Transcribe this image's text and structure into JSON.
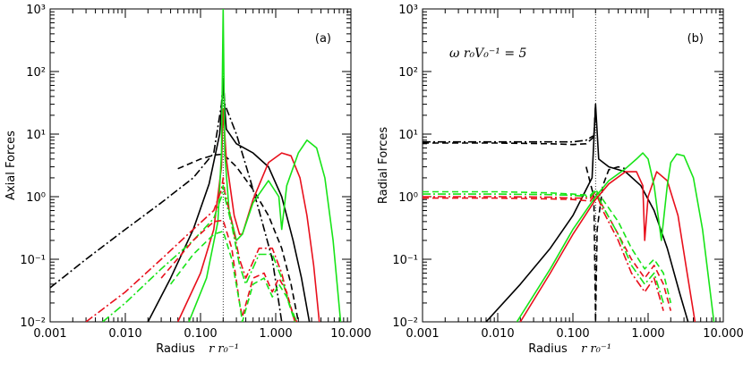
{
  "chart_data": [
    {
      "type": "line",
      "panel": "(a)",
      "ylabel": "Axial Forces",
      "xlabel": "Radius",
      "xlabel_math": "r r₀⁻¹",
      "xscale": "log",
      "yscale": "log",
      "xlim": [
        0.001,
        10
      ],
      "ylim": [
        0.01,
        1000
      ],
      "xticks": [
        "0.001",
        "0.010",
        "0.100",
        "1.000",
        "10.000"
      ],
      "yticks": [
        "10⁻²",
        "10⁻¹",
        "10⁰",
        "10¹",
        "10²",
        "10³"
      ],
      "vline_x": 0.2,
      "colors": {
        "black": "#000000",
        "red": "#e8101c",
        "green": "#18e418"
      },
      "series": [
        {
          "color": "black",
          "style": "solid",
          "x": [
            0.02,
            0.04,
            0.08,
            0.13,
            0.18,
            0.2,
            0.22,
            0.3,
            0.5,
            0.8,
            1.2,
            1.7,
            2.2,
            2.8
          ],
          "y": [
            0.01,
            0.05,
            0.3,
            1.6,
            10,
            60,
            12,
            7,
            5,
            3,
            1,
            0.2,
            0.05,
            0.01
          ]
        },
        {
          "color": "black",
          "style": "dashdot",
          "x": [
            0.001,
            0.003,
            0.01,
            0.03,
            0.08,
            0.15,
            0.19,
            0.2,
            0.21,
            0.3,
            0.45,
            0.6,
            0.9,
            1.2
          ],
          "y": [
            0.035,
            0.1,
            0.3,
            0.8,
            2,
            5,
            30,
            80,
            30,
            10,
            2,
            0.6,
            0.1,
            0.01
          ]
        },
        {
          "color": "black",
          "style": "dash",
          "x": [
            0.05,
            0.1,
            0.15,
            0.2,
            0.3,
            0.5,
            0.8,
            1.2,
            1.6,
            2.0
          ],
          "y": [
            2.8,
            4,
            4.6,
            4.8,
            3,
            1.3,
            0.5,
            0.15,
            0.04,
            0.01
          ]
        },
        {
          "color": "red",
          "style": "solid",
          "x": [
            0.05,
            0.1,
            0.15,
            0.19,
            0.2,
            0.22,
            0.28,
            0.33,
            0.36,
            0.5,
            0.8,
            1.2,
            1.6,
            2.1,
            2.6,
            3.2,
            3.8
          ],
          "y": [
            0.01,
            0.06,
            0.3,
            3,
            25,
            4,
            0.5,
            0.25,
            0.25,
            0.9,
            3.5,
            5,
            4.5,
            2,
            0.5,
            0.08,
            0.01
          ]
        },
        {
          "color": "green",
          "style": "solid",
          "x": [
            0.07,
            0.12,
            0.17,
            0.19,
            0.2,
            0.21,
            0.24,
            0.3,
            0.36,
            0.5,
            0.8,
            1.1,
            1.2,
            1.4,
            2,
            2.6,
            3.5,
            4.5,
            5.8,
            7.3
          ],
          "y": [
            0.01,
            0.05,
            0.4,
            5,
            1000,
            5,
            0.6,
            0.2,
            0.25,
            0.8,
            1.8,
            1,
            0.3,
            1.5,
            5,
            8,
            6,
            2,
            0.2,
            0.01
          ]
        },
        {
          "color": "red",
          "style": "dashdot",
          "x": [
            0.003,
            0.01,
            0.03,
            0.08,
            0.15,
            0.19,
            0.2,
            0.21,
            0.26,
            0.33,
            0.4,
            0.6,
            0.9,
            1.2,
            1.5,
            1.9
          ],
          "y": [
            0.01,
            0.03,
            0.1,
            0.3,
            0.6,
            1.3,
            2,
            1.2,
            0.4,
            0.1,
            0.05,
            0.15,
            0.15,
            0.06,
            0.02,
            0.01
          ]
        },
        {
          "color": "green",
          "style": "dashdot",
          "x": [
            0.005,
            0.01,
            0.03,
            0.08,
            0.15,
            0.19,
            0.2,
            0.21,
            0.26,
            0.33,
            0.4,
            0.6,
            0.9,
            1.2,
            1.5,
            1.9
          ],
          "y": [
            0.01,
            0.02,
            0.07,
            0.2,
            0.45,
            1,
            1.5,
            1,
            0.35,
            0.08,
            0.04,
            0.12,
            0.12,
            0.05,
            0.02,
            0.01
          ]
        },
        {
          "color": "red",
          "style": "dash",
          "x": [
            0.03,
            0.08,
            0.15,
            0.2,
            0.26,
            0.33,
            0.36,
            0.5,
            0.7,
            0.9,
            1.1,
            1.4,
            1.8
          ],
          "y": [
            0.05,
            0.2,
            0.4,
            0.42,
            0.15,
            0.02,
            0.012,
            0.05,
            0.06,
            0.03,
            0.05,
            0.03,
            0.01
          ]
        },
        {
          "color": "green",
          "style": "dash",
          "x": [
            0.04,
            0.08,
            0.15,
            0.2,
            0.26,
            0.33,
            0.36,
            0.5,
            0.7,
            0.9,
            1.1,
            1.4,
            1.8
          ],
          "y": [
            0.04,
            0.12,
            0.25,
            0.28,
            0.1,
            0.02,
            0.01,
            0.04,
            0.05,
            0.025,
            0.04,
            0.025,
            0.01
          ]
        }
      ]
    },
    {
      "type": "line",
      "panel": "(b)",
      "ylabel": "Radial Forces",
      "xlabel": "Radius",
      "xlabel_math": "r r₀⁻¹",
      "annotation": "ω r₀V₀⁻¹ = 5",
      "xscale": "log",
      "yscale": "log",
      "xlim": [
        0.001,
        10
      ],
      "ylim": [
        0.01,
        1000
      ],
      "xticks": [
        "0.001",
        "0.010",
        "0.100",
        "1.000",
        "10.000"
      ],
      "yticks": [
        "10⁻²",
        "10⁻¹",
        "10⁰",
        "10¹",
        "10²",
        "10³"
      ],
      "vline_x": 0.2,
      "colors": {
        "black": "#000000",
        "red": "#e8101c",
        "green": "#18e418"
      },
      "series": [
        {
          "color": "black",
          "style": "dash",
          "x": [
            0.001,
            0.01,
            0.05,
            0.1,
            0.15,
            0.19,
            0.2
          ],
          "y": [
            7.2,
            7.2,
            7,
            6.8,
            7,
            9,
            30
          ]
        },
        {
          "color": "black",
          "style": "dashdot",
          "x": [
            0.001,
            0.01,
            0.05,
            0.1,
            0.15,
            0.19,
            0.2
          ],
          "y": [
            7.5,
            7.5,
            7.5,
            7.5,
            8,
            9.5,
            25
          ]
        },
        {
          "color": "black",
          "style": "solid",
          "x": [
            0.007,
            0.02,
            0.05,
            0.1,
            0.18,
            0.2,
            0.22,
            0.3,
            0.5,
            0.8,
            1.2,
            1.8,
            2.6,
            3.4
          ],
          "y": [
            0.01,
            0.04,
            0.15,
            0.5,
            2,
            30,
            4,
            3,
            2.5,
            1.5,
            0.6,
            0.15,
            0.03,
            0.01
          ]
        },
        {
          "color": "black",
          "style": "dash",
          "x": [
            0.15,
            0.19,
            0.2,
            0.21,
            0.25,
            0.3,
            0.4,
            0.5
          ],
          "y": [
            3,
            1,
            0.01,
            0.3,
            1.5,
            2.7,
            3,
            2.8
          ]
        },
        {
          "color": "red",
          "style": "dash",
          "x": [
            0.001,
            0.01,
            0.05,
            0.1,
            0.17,
            0.2,
            0.25,
            0.4,
            0.6,
            0.9,
            1.2,
            1.6,
            2.0
          ],
          "y": [
            0.95,
            0.95,
            0.92,
            0.9,
            0.85,
            1.1,
            0.7,
            0.25,
            0.1,
            0.05,
            0.08,
            0.04,
            0.015
          ]
        },
        {
          "color": "green",
          "style": "dash",
          "x": [
            0.001,
            0.01,
            0.05,
            0.1,
            0.17,
            0.2,
            0.25,
            0.4,
            0.6,
            0.9,
            1.2,
            1.6,
            2.0
          ],
          "y": [
            1.2,
            1.2,
            1.15,
            1.1,
            1.05,
            1.3,
            0.9,
            0.4,
            0.15,
            0.07,
            0.1,
            0.06,
            0.02
          ]
        },
        {
          "color": "red",
          "style": "dashdot",
          "x": [
            0.001,
            0.01,
            0.05,
            0.1,
            0.17,
            0.2,
            0.25,
            0.4,
            0.6,
            0.9,
            1.2,
            1.6
          ],
          "y": [
            1,
            1,
            0.98,
            0.95,
            0.95,
            1.2,
            0.6,
            0.2,
            0.06,
            0.03,
            0.05,
            0.015
          ]
        },
        {
          "color": "green",
          "style": "dashdot",
          "x": [
            0.001,
            0.01,
            0.05,
            0.1,
            0.17,
            0.2,
            0.25,
            0.4,
            0.6,
            0.9,
            1.2,
            1.6
          ],
          "y": [
            1.1,
            1.1,
            1.08,
            1.05,
            1.0,
            1.25,
            0.7,
            0.25,
            0.08,
            0.04,
            0.06,
            0.02
          ]
        },
        {
          "color": "red",
          "style": "solid",
          "x": [
            0.02,
            0.05,
            0.1,
            0.2,
            0.3,
            0.5,
            0.7,
            0.85,
            0.9,
            1.0,
            1.3,
            1.8,
            2.5,
            3.3,
            4.2
          ],
          "y": [
            0.01,
            0.06,
            0.25,
            0.9,
            1.6,
            2.5,
            2.5,
            1.5,
            0.2,
            1.0,
            2.5,
            1.8,
            0.5,
            0.06,
            0.01
          ]
        },
        {
          "color": "green",
          "style": "solid",
          "x": [
            0.018,
            0.05,
            0.1,
            0.2,
            0.3,
            0.5,
            0.7,
            0.85,
            1.0,
            1.2,
            1.5,
            1.8,
            2.0,
            2.4,
            3.0,
            4.0,
            5.3,
            7.5
          ],
          "y": [
            0.01,
            0.07,
            0.3,
            1.0,
            1.8,
            2.8,
            4,
            5,
            4,
            1.5,
            0.2,
            1.5,
            3.5,
            4.8,
            4.5,
            2,
            0.3,
            0.01
          ]
        }
      ]
    }
  ]
}
